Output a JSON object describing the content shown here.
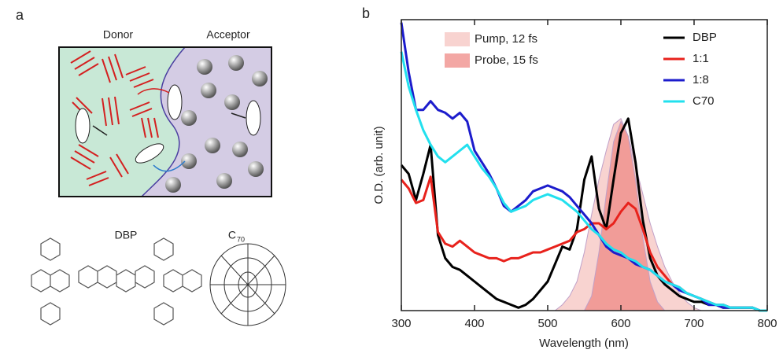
{
  "diagram": {
    "panel_label": "a",
    "donor": "Donor",
    "acceptor": "Acceptor",
    "molecule_1": "DBP",
    "molecule_2": {
      "base": "C",
      "subscript": "70"
    }
  },
  "chart_data": {
    "type": "line",
    "panel_label": "b",
    "xlabel": "Wavelength (nm)",
    "ylabel": "O.D. (arb. unit)",
    "xlim": [
      300,
      800
    ],
    "xticks": [
      300,
      400,
      500,
      600,
      700,
      800
    ],
    "ylim": [
      0,
      1
    ],
    "x": [
      300,
      310,
      320,
      330,
      340,
      350,
      360,
      370,
      380,
      390,
      400,
      410,
      420,
      430,
      440,
      450,
      460,
      470,
      480,
      490,
      500,
      510,
      520,
      530,
      540,
      550,
      560,
      570,
      580,
      590,
      600,
      610,
      620,
      630,
      640,
      650,
      660,
      670,
      680,
      690,
      700,
      710,
      720,
      730,
      740,
      750,
      760,
      770,
      780,
      790,
      800
    ],
    "bands": [
      {
        "name": "Pump, 12 fs",
        "color": "#f6c4c0",
        "values": [
          null,
          null,
          null,
          null,
          null,
          null,
          null,
          null,
          null,
          null,
          null,
          null,
          null,
          null,
          null,
          null,
          null,
          null,
          null,
          null,
          null,
          0,
          0.02,
          0.05,
          0.1,
          0.2,
          0.33,
          0.45,
          0.55,
          0.64,
          0.66,
          0.6,
          0.5,
          0.4,
          0.3,
          0.22,
          0.15,
          0.1,
          0.06,
          0.03,
          0.01,
          0,
          null,
          null,
          null,
          null,
          null,
          null,
          null,
          null,
          null
        ]
      },
      {
        "name": "Probe, 15 fs",
        "color": "#ef8a86",
        "values": [
          null,
          null,
          null,
          null,
          null,
          null,
          null,
          null,
          null,
          null,
          null,
          null,
          null,
          null,
          null,
          null,
          null,
          null,
          null,
          null,
          null,
          null,
          null,
          null,
          null,
          0,
          0.05,
          0.2,
          0.4,
          0.58,
          0.65,
          0.6,
          0.45,
          0.25,
          0.1,
          0.03,
          0,
          null,
          null,
          null,
          null,
          null,
          null,
          null,
          null,
          null,
          null,
          null,
          null,
          null,
          null
        ]
      }
    ],
    "series": [
      {
        "name": "DBP",
        "color": "#000000",
        "values": [
          0.5,
          0.47,
          0.38,
          0.47,
          0.57,
          0.26,
          0.18,
          0.15,
          0.14,
          0.12,
          0.1,
          0.08,
          0.06,
          0.04,
          0.03,
          0.02,
          0.01,
          0.02,
          0.04,
          0.07,
          0.1,
          0.16,
          0.22,
          0.21,
          0.28,
          0.45,
          0.53,
          0.35,
          0.28,
          0.45,
          0.61,
          0.66,
          0.51,
          0.31,
          0.18,
          0.12,
          0.09,
          0.07,
          0.05,
          0.04,
          0.03,
          0.03,
          0.02,
          0.02,
          0.01,
          0.01,
          0.01,
          0.01,
          0.01,
          0,
          0
        ]
      },
      {
        "name": "1:1",
        "color": "#e8221c",
        "values": [
          0.45,
          0.42,
          0.37,
          0.38,
          0.46,
          0.27,
          0.23,
          0.22,
          0.24,
          0.22,
          0.2,
          0.19,
          0.18,
          0.18,
          0.17,
          0.18,
          0.18,
          0.19,
          0.2,
          0.2,
          0.21,
          0.22,
          0.23,
          0.24,
          0.27,
          0.28,
          0.3,
          0.3,
          0.28,
          0.3,
          0.34,
          0.37,
          0.35,
          0.28,
          0.2,
          0.15,
          0.12,
          0.09,
          0.08,
          0.06,
          0.05,
          0.04,
          0.03,
          0.02,
          0.02,
          0.01,
          0.01,
          0.01,
          0.01,
          0,
          0
        ]
      },
      {
        "name": "1:8",
        "color": "#1c1ccc",
        "values": [
          0.99,
          0.82,
          0.69,
          0.69,
          0.72,
          0.69,
          0.68,
          0.66,
          0.68,
          0.65,
          0.55,
          0.51,
          0.47,
          0.42,
          0.36,
          0.34,
          0.36,
          0.38,
          0.41,
          0.42,
          0.43,
          0.42,
          0.41,
          0.39,
          0.36,
          0.33,
          0.3,
          0.26,
          0.22,
          0.2,
          0.19,
          0.18,
          0.16,
          0.15,
          0.14,
          0.12,
          0.1,
          0.09,
          0.07,
          0.06,
          0.05,
          0.04,
          0.02,
          0.02,
          0.01,
          0.01,
          0.01,
          0.01,
          0.01,
          0,
          0
        ]
      },
      {
        "name": "C70",
        "color": "#22e0ee",
        "values": [
          0.89,
          0.77,
          0.69,
          0.62,
          0.57,
          0.53,
          0.51,
          0.53,
          0.55,
          0.57,
          0.53,
          0.49,
          0.46,
          0.42,
          0.37,
          0.34,
          0.35,
          0.36,
          0.38,
          0.39,
          0.4,
          0.39,
          0.38,
          0.36,
          0.34,
          0.31,
          0.28,
          0.26,
          0.23,
          0.21,
          0.2,
          0.18,
          0.17,
          0.15,
          0.14,
          0.12,
          0.1,
          0.09,
          0.08,
          0.06,
          0.05,
          0.04,
          0.03,
          0.02,
          0.02,
          0.01,
          0.01,
          0.01,
          0.01,
          0,
          0
        ]
      }
    ]
  }
}
